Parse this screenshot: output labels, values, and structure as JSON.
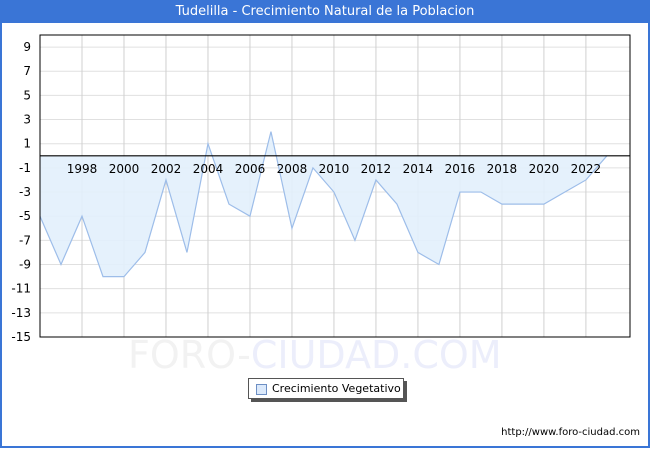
{
  "header": {
    "title": "Tudelilla - Crecimiento Natural de la Poblacion"
  },
  "legend": {
    "label": "Crecimiento Vegetativo"
  },
  "footer": {
    "url": "http://www.foro-ciudad.com"
  },
  "watermark": {
    "part1": "FORO-",
    "part2": "CIUDAD.COM"
  },
  "colors": {
    "title_bar": "#3a75d6",
    "fill": "#e2effc",
    "line": "#9dbde9",
    "grid": "#d0d0d0",
    "zero_line": "#000000"
  },
  "chart_data": {
    "type": "area",
    "title": "Tudelilla - Crecimiento Natural de la Poblacion",
    "xlabel": "",
    "ylabel": "",
    "x": [
      1996,
      1997,
      1998,
      1999,
      2000,
      2001,
      2002,
      2003,
      2004,
      2005,
      2006,
      2007,
      2008,
      2009,
      2010,
      2011,
      2012,
      2013,
      2014,
      2015,
      2016,
      2017,
      2018,
      2019,
      2020,
      2021,
      2022,
      2023
    ],
    "series": [
      {
        "name": "Crecimiento Vegetativo",
        "values": [
          -5,
          -9,
          -5,
          -10,
          -10,
          -8,
          -2,
          -8,
          1,
          -4,
          -5,
          2,
          -6,
          -1,
          -3,
          -7,
          -2,
          -4,
          -8,
          -9,
          -3,
          -3,
          -4,
          -4,
          -4,
          -3,
          -2,
          0
        ]
      }
    ],
    "ylim": [
      -15,
      10
    ],
    "xlim": [
      1996,
      2024.1
    ],
    "yticks": [
      9,
      7,
      5,
      3,
      1,
      -1,
      -3,
      -5,
      -7,
      -9,
      -11,
      -13,
      -15
    ],
    "xticks": [
      1998,
      2000,
      2002,
      2004,
      2006,
      2008,
      2010,
      2012,
      2014,
      2016,
      2018,
      2020,
      2022
    ],
    "grid": true,
    "legend_position": "bottom-center"
  }
}
